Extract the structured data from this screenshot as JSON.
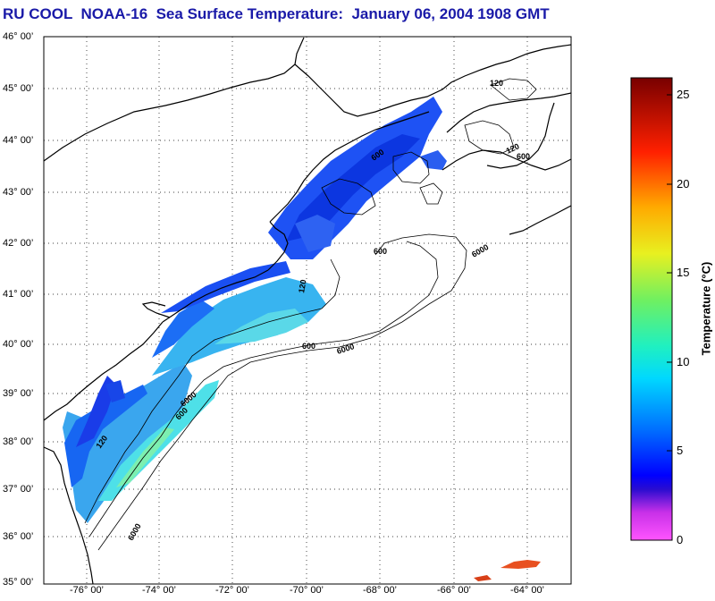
{
  "title": "RU COOL  NOAA-16  Sea Surface Temperature:  January 06, 2004 1908 GMT",
  "map": {
    "lat_labels": [
      "46° 00’",
      "45° 00’",
      "44° 00’",
      "43° 00’",
      "42° 00’",
      "41° 00’",
      "40° 00’",
      "39° 00’",
      "38° 00’",
      "37° 00’",
      "36° 00’",
      "35° 00’"
    ],
    "lon_labels": [
      "-76° 00’",
      "-74° 00’",
      "-72° 00’",
      "-70° 00’",
      "-68° 00’",
      "-66° 00’",
      "-64° 00’"
    ],
    "lat_range": [
      35,
      46
    ],
    "lon_range": [
      -77.2,
      -63.0
    ],
    "isobath_labels": [
      "120",
      "600",
      "6000"
    ]
  },
  "colorbar": {
    "title": "Temperature (°C)",
    "min": 0,
    "max": 26,
    "ticks": [
      "0",
      "5",
      "10",
      "15",
      "20",
      "25"
    ],
    "tick_values": [
      0,
      5,
      10,
      15,
      20,
      25
    ]
  },
  "colors": {
    "title": "#1a1aa8",
    "coast": "#000000",
    "water": "#ffffff"
  }
}
